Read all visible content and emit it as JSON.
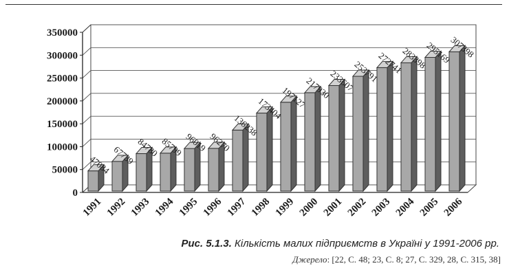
{
  "chart_data": {
    "type": "bar",
    "categories": [
      "1991",
      "1992",
      "1993",
      "1994",
      "1995",
      "1996",
      "1997",
      "1998",
      "1999",
      "2000",
      "2001",
      "2002",
      "2003",
      "2004",
      "2005",
      "2006"
    ],
    "values": [
      47084,
      67739,
      84780,
      85799,
      96019,
      96270,
      136238,
      173404,
      197127,
      217930,
      233607,
      253791,
      272741,
      283398,
      295169,
      307398
    ],
    "data_labels": [
      "47084",
      "67739",
      "84780",
      "85799",
      "96019",
      "96270",
      "136238",
      "173404",
      "197127",
      "217930",
      "233607",
      "253791",
      "272741",
      "283398",
      "295169",
      "307398"
    ],
    "y_ticks": [
      "0",
      "50000",
      "100000",
      "150000",
      "200000",
      "250000",
      "300000",
      "350000"
    ],
    "ylim": [
      0,
      350000
    ],
    "title": "",
    "xlabel": "",
    "ylabel": "",
    "grid": true,
    "bar_color": "#a8a8a8"
  },
  "caption": {
    "figure": "Рис. 5.1.3.",
    "text": " Кількість малих підприємств в Україні у 1991-2006 рр."
  },
  "source": {
    "label": "Джерело",
    "text": ": [22, С. 48; 23, С. 8; 27, С. 329, 28, С. 315, 38]"
  }
}
